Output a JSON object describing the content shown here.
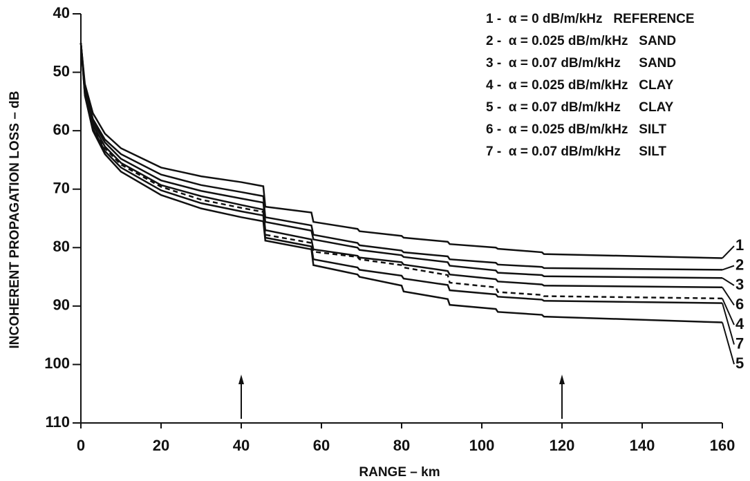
{
  "chart_data": {
    "type": "line",
    "xlabel": "RANGE – km",
    "ylabel": "INCOHERENT PROPAGATION LOSS – dB",
    "xlim": [
      0,
      160
    ],
    "xticks": [
      0,
      20,
      40,
      60,
      80,
      100,
      120,
      140,
      160
    ],
    "ylim": [
      40,
      110
    ],
    "y_inverted": true,
    "yticks": [
      40,
      50,
      60,
      70,
      80,
      90,
      100,
      110
    ],
    "arrows": [
      40,
      120
    ],
    "x": [
      0,
      1,
      3,
      6,
      10,
      20,
      30,
      40,
      45.5,
      46,
      57.5,
      58,
      69,
      69.5,
      80,
      80.5,
      91.5,
      92,
      103.5,
      104,
      115,
      115.5,
      160
    ],
    "series": [
      {
        "name": "1 -  α = 0 dB/m/kHz   REFERENCE",
        "end_label": "1",
        "color": "#111",
        "dashed": false,
        "values": [
          45,
          52,
          57,
          60.5,
          63,
          66.3,
          67.8,
          68.8,
          69.5,
          73,
          74,
          75.6,
          76.8,
          77.2,
          78,
          78.3,
          79,
          79.4,
          80,
          80.2,
          80.8,
          81.1,
          81.8
        ]
      },
      {
        "name": "2 -  α = 0.025 dB/m/kHz   SAND",
        "end_label": "2",
        "color": "#111",
        "dashed": false,
        "values": [
          45,
          52.5,
          58,
          61.5,
          64,
          67.5,
          69.3,
          70.5,
          71.2,
          74.8,
          76.2,
          77.8,
          79.2,
          79.6,
          80.5,
          80.8,
          81.5,
          82,
          82.6,
          82.9,
          83.3,
          83.5,
          83.8
        ]
      },
      {
        "name": "3 -  α = 0.07 dB/m/kHz     SAND",
        "end_label": "3",
        "color": "#111",
        "dashed": false,
        "values": [
          45,
          53,
          58.5,
          62,
          64.8,
          68.5,
          70.3,
          71.6,
          72.3,
          75.6,
          77.1,
          78.6,
          80,
          80.4,
          81.3,
          81.6,
          82.5,
          83.1,
          83.9,
          84.3,
          84.7,
          84.9,
          85.2
        ]
      },
      {
        "name": "4 -  α = 0.025 dB/m/kHz   CLAY",
        "end_label": "4",
        "color": "#111",
        "dashed": true,
        "values": [
          45,
          53.5,
          59.3,
          63,
          65.8,
          69.6,
          71.8,
          73.2,
          73.9,
          77.8,
          79.2,
          80.7,
          81.6,
          82,
          83,
          83.4,
          84.7,
          86,
          86.8,
          87.6,
          88.1,
          88.3,
          88.7
        ]
      },
      {
        "name": "5 -  α = 0.07 dB/m/kHz     CLAY",
        "end_label": "5",
        "color": "#111",
        "dashed": false,
        "values": [
          45,
          54,
          60,
          64,
          67,
          71,
          73.3,
          74.8,
          75.5,
          78.8,
          80.3,
          83,
          84.6,
          85,
          86.5,
          87.5,
          88.8,
          89.8,
          90.5,
          91,
          91.5,
          91.8,
          92.8
        ]
      },
      {
        "name": "6 -  α = 0.025 dB/m/kHz   SILT",
        "end_label": "6",
        "color": "#111",
        "dashed": false,
        "values": [
          45,
          53.3,
          59,
          62.7,
          65.5,
          69.3,
          71.2,
          72.7,
          73.5,
          77,
          78.6,
          80.3,
          81.4,
          81.7,
          82.5,
          82.9,
          84,
          84.6,
          85.4,
          85.8,
          86.3,
          86.5,
          86.8
        ]
      },
      {
        "name": "7 -  α = 0.07 dB/m/kHz     SILT",
        "end_label": "7",
        "color": "#111",
        "dashed": false,
        "values": [
          45,
          53.8,
          59.6,
          63.5,
          66.3,
          70.2,
          72.4,
          73.8,
          74.5,
          78.3,
          79.8,
          82,
          83.4,
          83.8,
          84.8,
          85.3,
          86.4,
          87.3,
          88,
          88.4,
          88.9,
          89.1,
          89.5
        ]
      }
    ]
  }
}
